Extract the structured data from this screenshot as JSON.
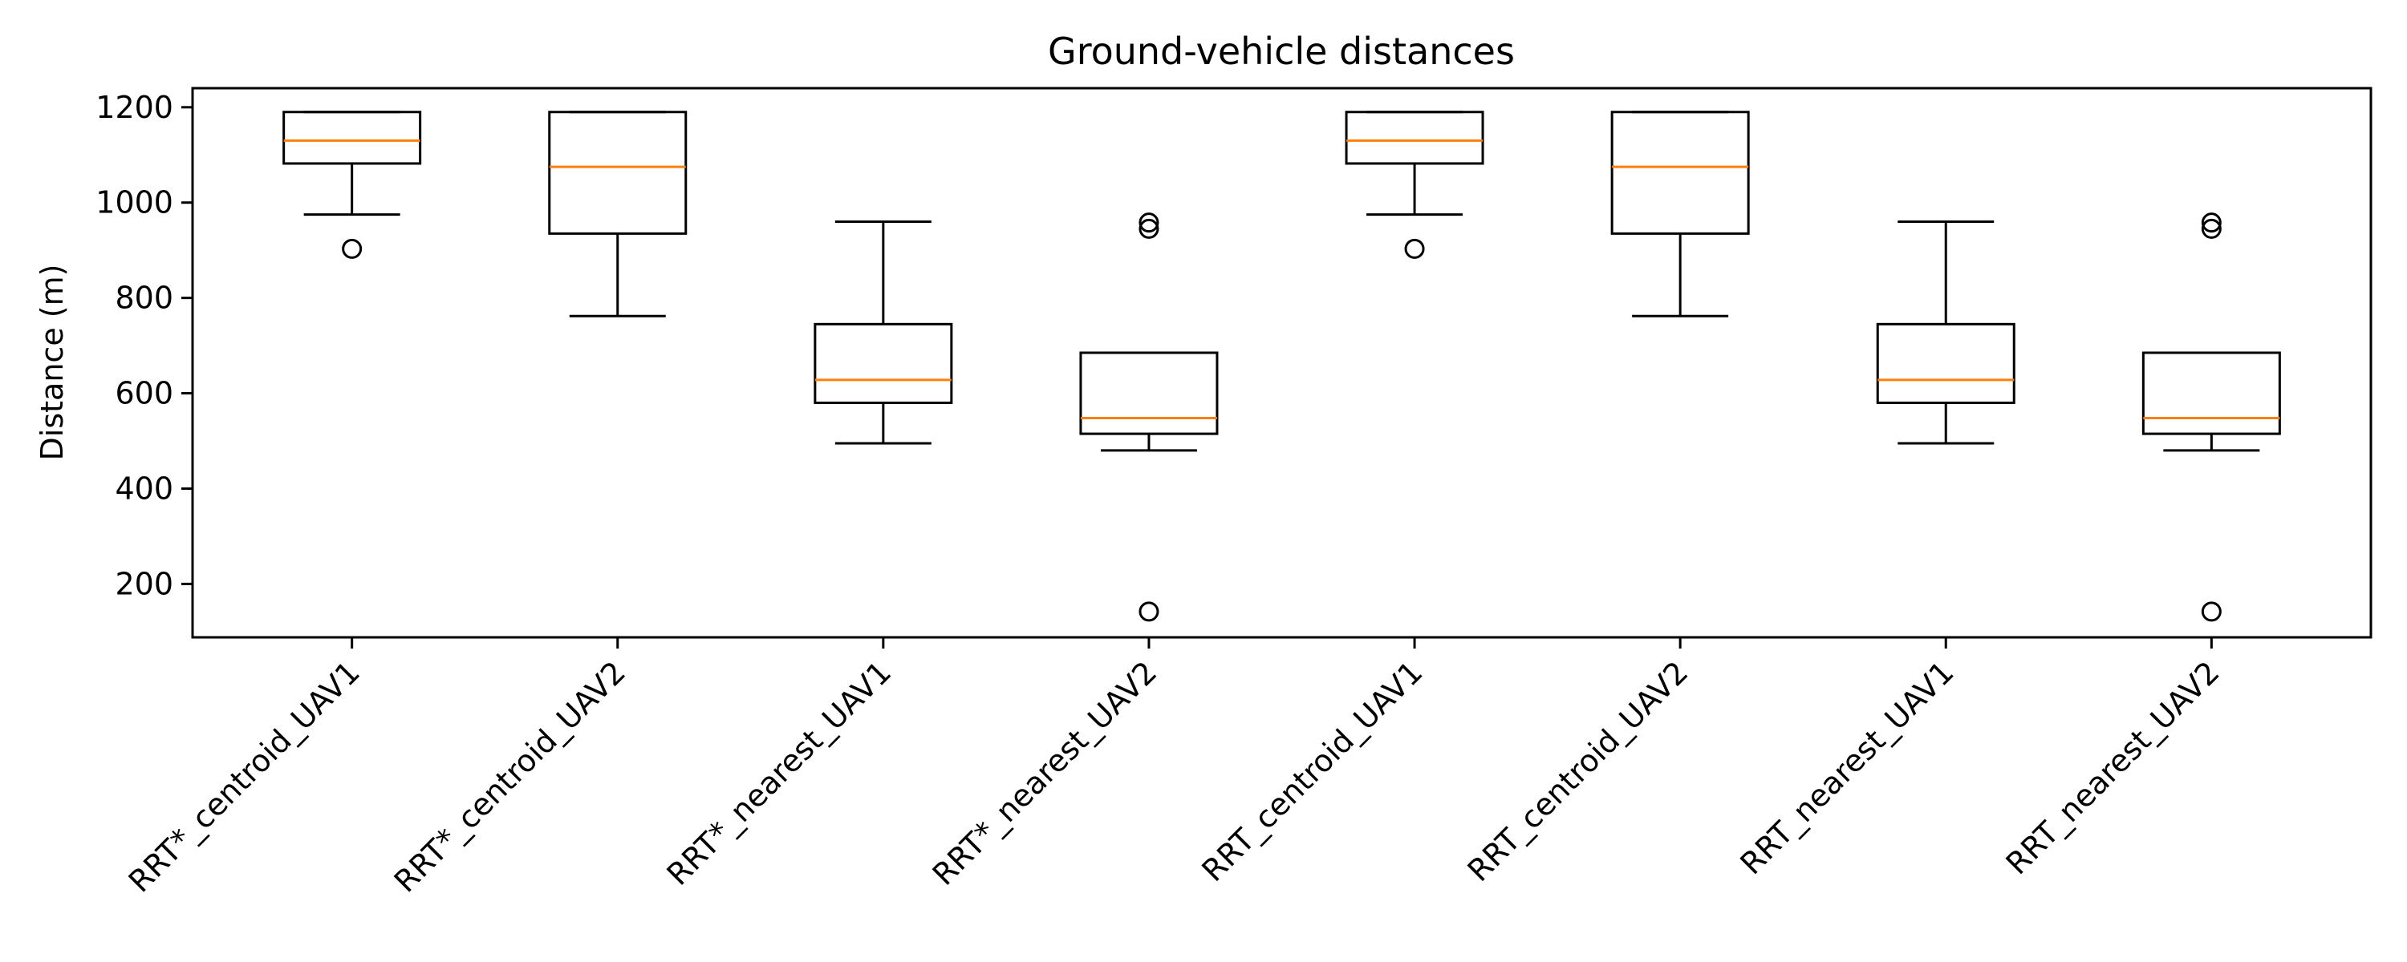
{
  "chart_data": {
    "type": "box",
    "title": "Ground-vehicle distances",
    "xlabel": "",
    "ylabel": "Distance (m)",
    "ylim": [
      88,
      1240
    ],
    "yticks": [
      200,
      400,
      600,
      800,
      1000,
      1200
    ],
    "grid": false,
    "legend": "none",
    "colors": {
      "box": "#000000",
      "median": "#ff7f0e",
      "outlier": "#000000"
    },
    "categories": [
      "RRT*_centroid_UAV1",
      "RRT*_centroid_UAV2",
      "RRT*_nearest_UAV1",
      "RRT*_nearest_UAV2",
      "RRT_centroid_UAV1",
      "RRT_centroid_UAV2",
      "RRT_nearest_UAV1",
      "RRT_nearest_UAV2"
    ],
    "boxes": [
      {
        "whisker_low": 975,
        "q1": 1082,
        "median": 1130,
        "q3": 1190,
        "whisker_high": 1190,
        "outliers": [
          903
        ]
      },
      {
        "whisker_low": 762,
        "q1": 935,
        "median": 1075,
        "q3": 1190,
        "whisker_high": 1190,
        "outliers": []
      },
      {
        "whisker_low": 495,
        "q1": 580,
        "median": 628,
        "q3": 745,
        "whisker_high": 960,
        "outliers": []
      },
      {
        "whisker_low": 480,
        "q1": 515,
        "median": 548,
        "q3": 685,
        "whisker_high": 685,
        "outliers": [
          142,
          945,
          958
        ]
      },
      {
        "whisker_low": 975,
        "q1": 1082,
        "median": 1130,
        "q3": 1190,
        "whisker_high": 1190,
        "outliers": [
          903
        ]
      },
      {
        "whisker_low": 762,
        "q1": 935,
        "median": 1075,
        "q3": 1190,
        "whisker_high": 1190,
        "outliers": []
      },
      {
        "whisker_low": 495,
        "q1": 580,
        "median": 628,
        "q3": 745,
        "whisker_high": 960,
        "outliers": []
      },
      {
        "whisker_low": 480,
        "q1": 515,
        "median": 548,
        "q3": 685,
        "whisker_high": 685,
        "outliers": [
          142,
          945,
          958
        ]
      }
    ]
  }
}
